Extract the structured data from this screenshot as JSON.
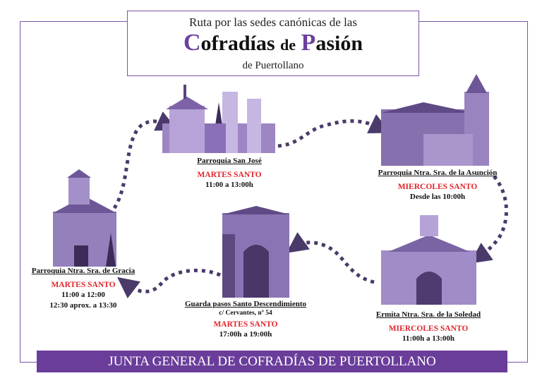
{
  "header": {
    "line1": "Ruta por las sedes canónicas de las",
    "title_c": "C",
    "title_rest1": "ofradías",
    "title_de": "de",
    "title_p": "P",
    "title_rest2": "asión",
    "line3": "de Puertollano"
  },
  "colors": {
    "accent": "#6a3d9a",
    "day": "#e0262b"
  },
  "sites": [
    {
      "name": "Parroquia San José",
      "day": "MARTES SANTO",
      "times": [
        "11:00 a 13:00h"
      ]
    },
    {
      "name": "Parroquia Ntra. Sra. de la Asunción",
      "day": "MIERCOLES SANTO",
      "times": [
        "Desde las 10:00h"
      ]
    },
    {
      "name": "Parroquia Ntra. Sra. de Gracia",
      "day": "MARTES SANTO",
      "times": [
        "11:00 a 12:00",
        "12:30 aprox. a 13:30"
      ]
    },
    {
      "name": "Guarda pasos Santo Descendimiento",
      "address": "c/ Cervantes, nº 54",
      "day": "MARTES SANTO",
      "times": [
        "17:00h a 19:00h"
      ]
    },
    {
      "name": "Ermita Ntra. Sra. de la Soledad",
      "day": "MIERCOLES SANTO",
      "times": [
        "11:00h a 13:00h"
      ]
    }
  ],
  "footer": {
    "text": "JUNTA GENERAL DE COFRADÍAS DE PUERTOLLANO"
  }
}
